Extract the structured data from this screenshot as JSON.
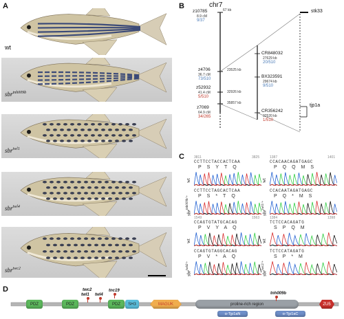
{
  "panels": {
    "a": "A",
    "b": "B",
    "c": "C",
    "d": "D"
  },
  "panel_a": {
    "fish": [
      {
        "label": "wt",
        "sup": "",
        "pattern": "stripes"
      },
      {
        "label": "sbr",
        "sup": "tnh009b",
        "pattern": "broken"
      },
      {
        "label": "sbr",
        "sup": "twl1",
        "pattern": "spots"
      },
      {
        "label": "sbr",
        "sup": "twl4",
        "pattern": "spots"
      },
      {
        "label": "sbr",
        "sup": "twc2",
        "pattern": "spots"
      }
    ]
  },
  "panel_b": {
    "chr_title": "chr7",
    "left_markers": [
      {
        "name": "z10785",
        "cm": "8.9 cM",
        "ratio": "9/37",
        "color": "blue",
        "kb": "67 kb"
      },
      {
        "name": "z4706",
        "cm": "36.7 cM",
        "ratio": "73/510",
        "color": "blue",
        "kb": "23525 kb"
      },
      {
        "name": "z52932",
        "cm": "41.4 cM",
        "ratio": "5/510",
        "color": "red",
        "kb": "32926 kb"
      },
      {
        "name": "z7069",
        "cm": "64.9 cM",
        "ratio": "34/265",
        "color": "red",
        "kb": "35857 kb"
      }
    ],
    "right_markers": [
      {
        "name": "CR848032",
        "kb": "27629 kb",
        "ratio": "20/510",
        "color": "blue"
      },
      {
        "name": "BX323591",
        "kb": "29674 kb",
        "ratio": "9/510",
        "color": "blue"
      },
      {
        "name": "CR356242",
        "kb": "32520 kb",
        "ratio": "1/510",
        "color": "red"
      }
    ],
    "genes": [
      "stk33",
      "tjp1a"
    ]
  },
  "panel_c": {
    "blocks": [
      {
        "pos_start": "3811",
        "pos_end": "3825",
        "top_label": "wt",
        "top_seq": "CCTTCCTACCACTCAA",
        "top_aa": "PSYTQ",
        "bottom_label": "sbr",
        "bottom_sup": "tnh009b/+",
        "bottom_seq": "CCTTCCTAGCACTCAA",
        "bottom_aa": "PS*TQ"
      },
      {
        "pos_start": "1387",
        "pos_end": "1401",
        "top_label": "wt",
        "top_seq": "CCACAACAGATGAGC",
        "top_aa": "PQQMS",
        "bottom_label": "sbr",
        "bottom_sup": "twl1/+",
        "bottom_seq": "CCACAATAGATGAGC",
        "bottom_aa": "PQ*MS"
      },
      {
        "pos_start": "1549",
        "pos_end": "1563",
        "top_label": "wt",
        "top_seq": "CCAGTGTATGCACAG",
        "top_aa": "PVYAQ",
        "bottom_label": "sbr",
        "bottom_sup": "twl4/+",
        "bottom_seq": "CCAGTGTAGGCACAG",
        "bottom_aa": "PV*AQ"
      },
      {
        "pos_start": "1384",
        "pos_end": "1398",
        "top_label": "wt",
        "top_seq": "TCTCCACAGATG",
        "top_aa": "SPQM",
        "bottom_label": "sbr",
        "bottom_sup": "twc2/+",
        "bottom_seq": "TCTCCATAGATG",
        "bottom_aa": "SP*M"
      }
    ]
  },
  "panel_d": {
    "domains": [
      {
        "name": "PDZ",
        "color": "#5cb85c"
      },
      {
        "name": "PDZ",
        "color": "#5cb85c"
      },
      {
        "name": "PDZ",
        "color": "#5cb85c"
      },
      {
        "name": "SH3",
        "color": "#5bc0de"
      },
      {
        "name": "MAGUK",
        "color": "#f0ad4e"
      },
      {
        "name": "proline-rich region",
        "color": "#9aa0a6"
      },
      {
        "name": "ZU5",
        "color": "#c9302c"
      }
    ],
    "binding": [
      "α-Tjp1aN",
      "α-Tjp1aC"
    ],
    "mutations": [
      "twc2",
      "twl1",
      "twl4",
      "tnc19",
      "tnh009b"
    ]
  }
}
